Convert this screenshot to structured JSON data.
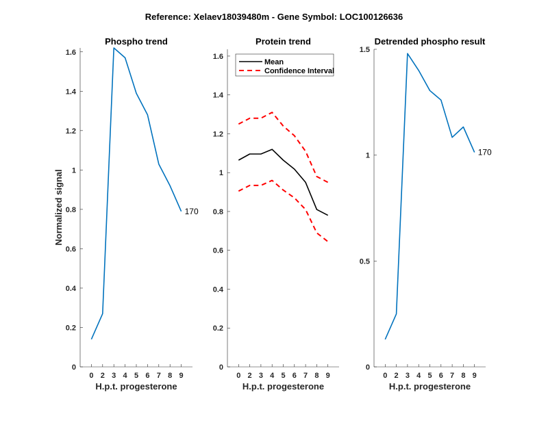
{
  "figure_title": "Reference:  Xelaev18039480m - Gene Symbol:  LOC100126636",
  "colors": {
    "phospho": "#0072BD",
    "mean": "#000000",
    "ci": "#FF0000",
    "axis": "#262626"
  },
  "chart_data": [
    {
      "type": "line",
      "title": "Phospho trend",
      "xlabel": "H.p.t. progesterone",
      "ylabel": "Normalized signal",
      "x": [
        1,
        2,
        3,
        4,
        5,
        6,
        7,
        8,
        9
      ],
      "xtick_labels": [
        "0",
        "2",
        "3",
        "4",
        "5",
        "6",
        "7",
        "8",
        "9"
      ],
      "xlim": [
        0,
        10
      ],
      "ylim": [
        0,
        1.62
      ],
      "yticks": [
        0,
        0.2,
        0.4,
        0.6,
        0.8,
        1,
        1.2,
        1.4,
        1.6
      ],
      "ytick_labels": [
        "0",
        "0.2",
        "0.4",
        "0.6",
        "0.8",
        "1",
        "1.2",
        "1.4",
        "1.6"
      ],
      "series": [
        {
          "name": "Phospho",
          "style": "solid",
          "color": "#0072BD",
          "values": [
            0.14,
            0.27,
            1.62,
            1.57,
            1.39,
            1.28,
            1.03,
            0.92,
            0.79
          ]
        }
      ],
      "annotation": "170",
      "grid": false
    },
    {
      "type": "line",
      "title": "Protein trend",
      "xlabel": "H.p.t. progesterone",
      "ylabel": "",
      "x": [
        1,
        2,
        3,
        4,
        5,
        6,
        7,
        8,
        9
      ],
      "xtick_labels": [
        "0",
        "2",
        "3",
        "4",
        "5",
        "6",
        "7",
        "8",
        "9"
      ],
      "xlim": [
        0,
        10
      ],
      "ylim": [
        0,
        1.635
      ],
      "yticks": [
        0,
        0.2,
        0.4,
        0.6,
        0.8,
        1,
        1.2,
        1.4,
        1.6
      ],
      "ytick_labels": [
        "0",
        "0.2",
        "0.4",
        "0.6",
        "0.8",
        "1",
        "1.2",
        "1.4",
        "1.6"
      ],
      "series": [
        {
          "name": "Mean",
          "style": "solid",
          "color": "#000000",
          "values": [
            1.064,
            1.096,
            1.096,
            1.12,
            1.064,
            1.018,
            0.95,
            0.81,
            0.78
          ]
        },
        {
          "name": "Confidence Interval",
          "style": "dashed",
          "color": "#FF0000",
          "values": [
            1.25,
            1.28,
            1.28,
            1.31,
            1.24,
            1.19,
            1.11,
            0.98,
            0.95
          ]
        },
        {
          "name": "Confidence Interval (lower)",
          "style": "dashed",
          "color": "#FF0000",
          "in_legend": false,
          "values": [
            0.905,
            0.934,
            0.934,
            0.96,
            0.91,
            0.87,
            0.81,
            0.69,
            0.645
          ]
        }
      ],
      "legend": {
        "placement": "top-left",
        "entries": [
          "Mean",
          "Confidence Interval"
        ]
      },
      "grid": false
    },
    {
      "type": "line",
      "title": "Detrended phospho result",
      "xlabel": "H.p.t. progesterone",
      "ylabel": "",
      "x": [
        1,
        2,
        3,
        4,
        5,
        6,
        7,
        8,
        9
      ],
      "xtick_labels": [
        "0",
        "2",
        "3",
        "4",
        "5",
        "6",
        "7",
        "8",
        "9"
      ],
      "xlim": [
        0,
        10
      ],
      "ylim": [
        0,
        1.5
      ],
      "yticks": [
        0,
        0.5,
        1,
        1.5
      ],
      "ytick_labels": [
        "0",
        "0.5",
        "1",
        "1.5"
      ],
      "series": [
        {
          "name": "Detrended",
          "style": "solid",
          "color": "#0072BD",
          "values": [
            0.13,
            0.25,
            1.48,
            1.4,
            1.305,
            1.26,
            1.084,
            1.133,
            1.013
          ]
        }
      ],
      "annotation": "170",
      "grid": false
    }
  ]
}
